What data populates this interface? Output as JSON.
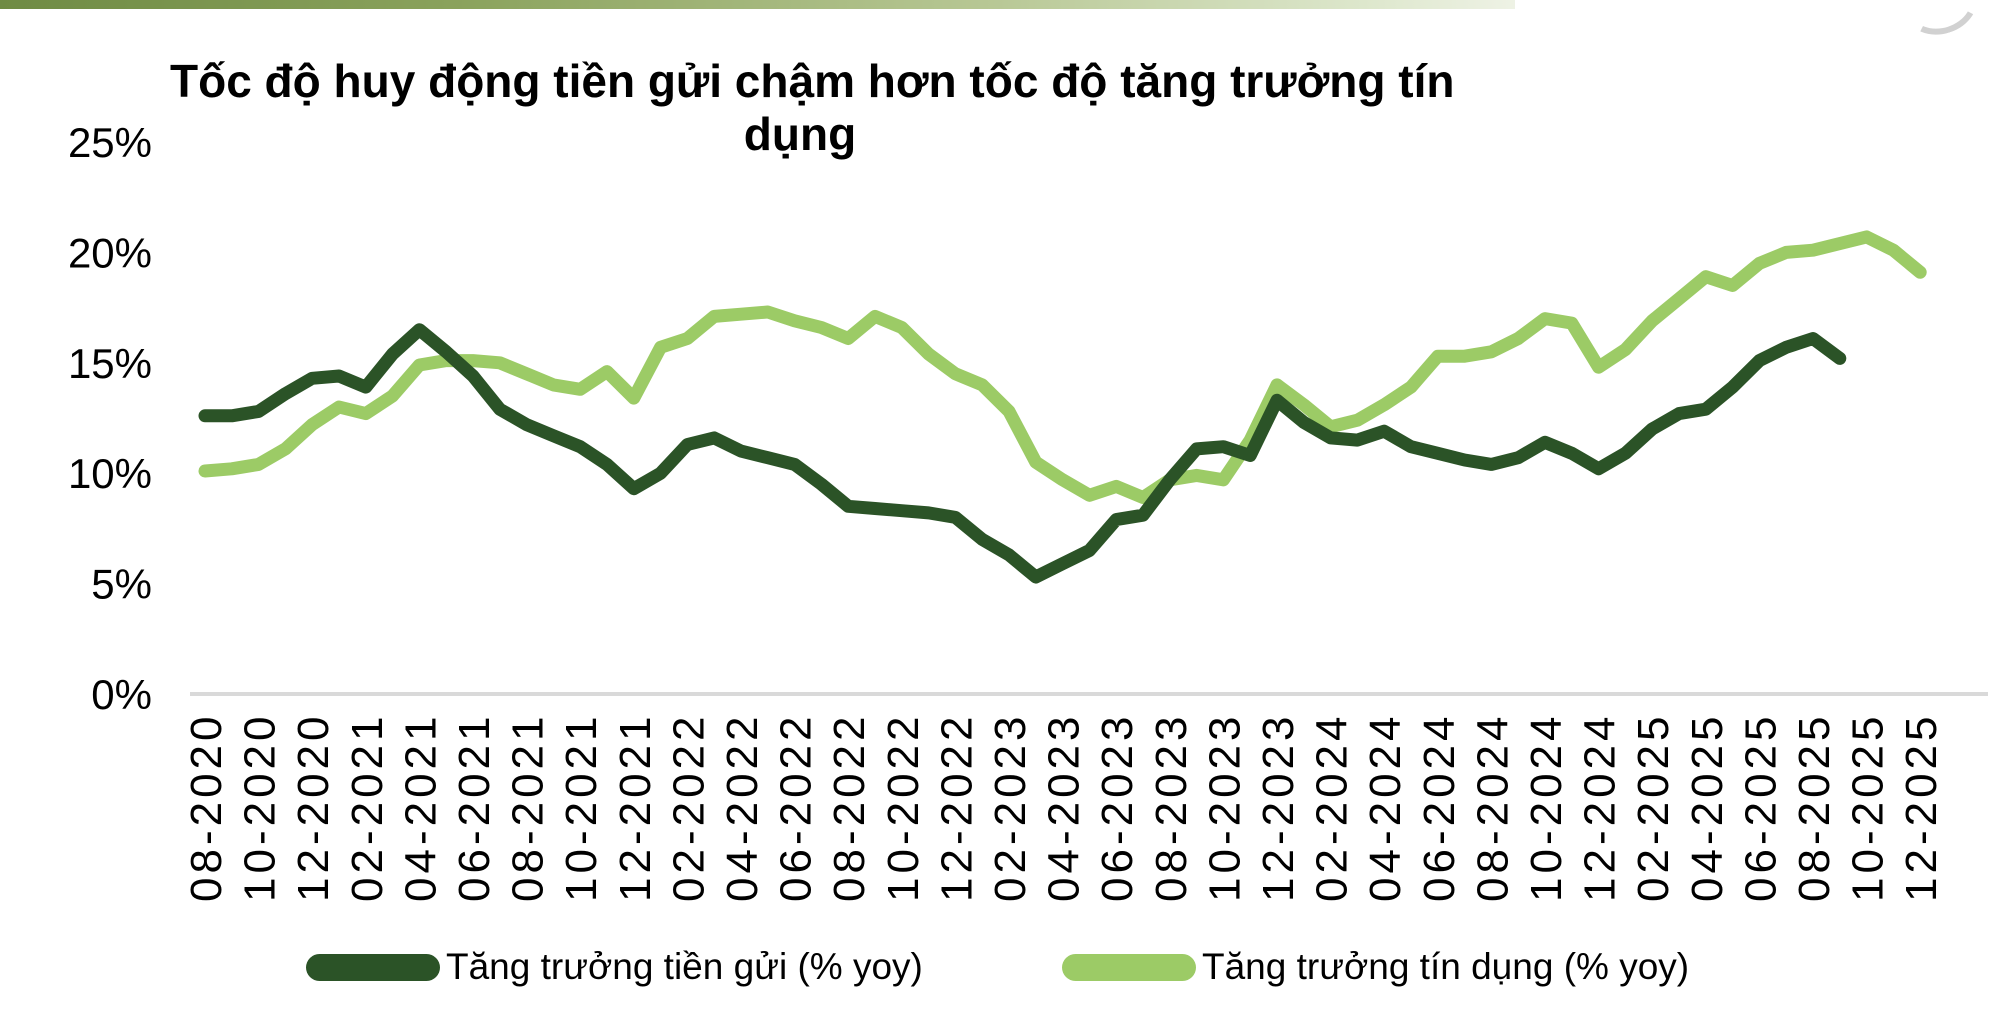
{
  "page": {
    "background": "#ffffff",
    "accent_bar_colors": [
      "#6f8b44",
      "#eef2e5"
    ]
  },
  "chart": {
    "title_line1": "Tốc độ huy động tiền gửi chậm hơn tốc độ tăng trưởng tín",
    "title_line2": "dụng",
    "axis_color": "#d9d9d9",
    "text_color": "#000000"
  },
  "chart_data": {
    "type": "line",
    "title": "Tốc độ huy động tiền gửi chậm hơn tốc độ tăng trưởng tín dụng",
    "xlabel": "",
    "ylabel": "",
    "ylim": [
      0,
      25
    ],
    "y_tick_interval": 5,
    "y_tick_labels": [
      "0%",
      "5%",
      "10%",
      "15%",
      "20%",
      "25%"
    ],
    "grid": false,
    "legend_position": "bottom",
    "x_tick_step": 2,
    "x": [
      "08-2020",
      "09-2020",
      "10-2020",
      "11-2020",
      "12-2020",
      "01-2021",
      "02-2021",
      "03-2021",
      "04-2021",
      "05-2021",
      "06-2021",
      "07-2021",
      "08-2021",
      "09-2021",
      "10-2021",
      "11-2021",
      "12-2021",
      "01-2022",
      "02-2022",
      "03-2022",
      "04-2022",
      "05-2022",
      "06-2022",
      "07-2022",
      "08-2022",
      "09-2022",
      "10-2022",
      "11-2022",
      "12-2022",
      "01-2023",
      "02-2023",
      "03-2023",
      "04-2023",
      "05-2023",
      "06-2023",
      "07-2023",
      "08-2023",
      "09-2023",
      "10-2023",
      "11-2023",
      "12-2023",
      "01-2024",
      "02-2024",
      "03-2024",
      "04-2024",
      "05-2024",
      "06-2024",
      "07-2024",
      "08-2024",
      "09-2024",
      "10-2024",
      "11-2024",
      "12-2024",
      "01-2025",
      "02-2025",
      "03-2025",
      "04-2025",
      "05-2025",
      "06-2025",
      "07-2025",
      "08-2025",
      "09-2025",
      "10-2025",
      "11-2025",
      "12-2025"
    ],
    "series": [
      {
        "name": "Tăng trưởng tiền gửi (% yoy)",
        "color": "#2b5327",
        "values": [
          12.6,
          12.6,
          12.8,
          13.6,
          14.3,
          14.4,
          13.9,
          15.4,
          16.5,
          15.5,
          14.4,
          12.9,
          12.2,
          11.7,
          11.2,
          10.4,
          9.3,
          10.0,
          11.3,
          11.6,
          11.0,
          10.7,
          10.4,
          9.5,
          8.5,
          8.4,
          8.3,
          8.2,
          8.0,
          7.0,
          6.3,
          5.3,
          5.9,
          6.5,
          7.9,
          8.1,
          9.7,
          11.1,
          11.2,
          10.8,
          13.3,
          12.3,
          11.6,
          11.5,
          11.9,
          11.2,
          10.9,
          10.6,
          10.4,
          10.7,
          11.4,
          10.9,
          10.2,
          10.9,
          12.0,
          12.7,
          12.9,
          13.9,
          15.1,
          15.7,
          16.1,
          15.2,
          null,
          null,
          null
        ]
      },
      {
        "name": "Tăng trưởng tín dụng (% yoy)",
        "color": "#9ccb66",
        "values": [
          10.1,
          10.2,
          10.4,
          11.1,
          12.2,
          13.0,
          12.7,
          13.5,
          14.9,
          15.1,
          15.1,
          15.0,
          14.5,
          14.0,
          13.8,
          14.6,
          13.4,
          15.7,
          16.1,
          17.1,
          17.2,
          17.3,
          16.9,
          16.6,
          16.1,
          17.1,
          16.6,
          15.4,
          14.5,
          14.0,
          12.8,
          10.5,
          9.7,
          9.0,
          9.4,
          8.9,
          9.7,
          9.9,
          9.7,
          11.5,
          14.0,
          13.1,
          12.1,
          12.4,
          13.1,
          13.9,
          15.3,
          15.3,
          15.5,
          16.1,
          17.0,
          16.8,
          14.8,
          15.6,
          16.9,
          17.9,
          18.9,
          18.5,
          19.5,
          20.0,
          20.1,
          20.4,
          20.7,
          20.1,
          19.1
        ]
      }
    ]
  }
}
